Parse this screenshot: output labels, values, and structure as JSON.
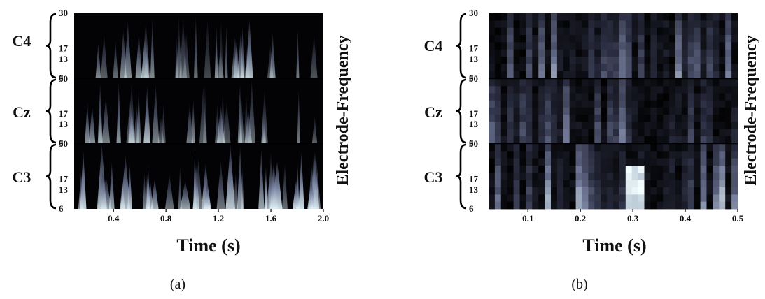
{
  "chart_data": [
    {
      "type": "heatmap",
      "caption": "(a)",
      "xlabel": "Time (s)",
      "ylabel": "Electrode-Frequency",
      "xlim": [
        0.1,
        2.0
      ],
      "xticks": [
        "0.4",
        "0.8",
        "1.2",
        "1.6",
        "2.0"
      ],
      "xtick_values": [
        0.4,
        0.8,
        1.2,
        1.6,
        2.0
      ],
      "electrodes": [
        "C4",
        "Cz",
        "C3"
      ],
      "frequency_ticks": [
        "30",
        "17",
        "13",
        "6"
      ],
      "frequency_tick_values": [
        30,
        17,
        13,
        6
      ],
      "colormap": [
        "#000000",
        "#2a2d40",
        "#6a7290",
        "#b8c7d4",
        "#f4ffff"
      ],
      "grid": false
    },
    {
      "type": "heatmap",
      "caption": "(b)",
      "xlabel": "Time (s)",
      "ylabel": "Electrode-Frequency",
      "xlim": [
        0.025,
        0.5
      ],
      "xticks": [
        "0.1",
        "0.2",
        "0.3",
        "0.4",
        "0.5"
      ],
      "xtick_values": [
        0.1,
        0.2,
        0.3,
        0.4,
        0.5
      ],
      "electrodes": [
        "C4",
        "Cz",
        "C3"
      ],
      "frequency_ticks": [
        "30",
        "17",
        "13",
        "6"
      ],
      "frequency_tick_values": [
        30,
        17,
        13,
        6
      ],
      "colormap": [
        "#000000",
        "#2a2d40",
        "#6a7290",
        "#b8c7d4",
        "#f4ffff"
      ],
      "grid": false
    }
  ]
}
